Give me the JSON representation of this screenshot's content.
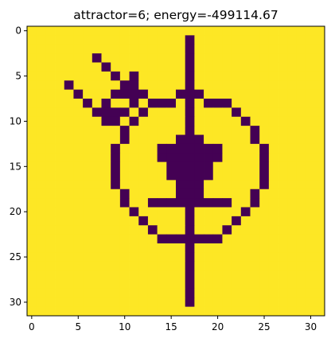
{
  "chart_data": {
    "type": "heatmap",
    "title": "attractor=6; energy=-499114.67",
    "colormap": "viridis",
    "colors": {
      "high": "#fde725",
      "low": "#440154",
      "axes": "#000000",
      "background": "#ffffff"
    },
    "rows": 32,
    "cols": 32,
    "values_legend": {
      "1": "high (yellow)",
      "-1": "low (purple)"
    },
    "x_ticks": [
      0,
      5,
      10,
      15,
      20,
      25,
      30
    ],
    "y_ticks": [
      0,
      5,
      10,
      15,
      20,
      25,
      30
    ],
    "x_tick_labels": [
      "0",
      "5",
      "10",
      "15",
      "20",
      "25",
      "30"
    ],
    "y_tick_labels": [
      "0",
      "5",
      "10",
      "15",
      "20",
      "25",
      "30"
    ],
    "xlim": [
      -0.5,
      31.5
    ],
    "ylim": [
      31.5,
      -0.5
    ],
    "xlabel": "",
    "ylabel": "",
    "low_cells": [
      [
        1,
        17
      ],
      [
        2,
        17
      ],
      [
        3,
        17
      ],
      [
        3,
        7
      ],
      [
        4,
        8
      ],
      [
        4,
        17
      ],
      [
        5,
        9
      ],
      [
        5,
        11
      ],
      [
        5,
        17
      ],
      [
        6,
        4
      ],
      [
        6,
        10
      ],
      [
        6,
        11
      ],
      [
        6,
        17
      ],
      [
        7,
        5
      ],
      [
        7,
        9
      ],
      [
        7,
        10
      ],
      [
        7,
        11
      ],
      [
        7,
        12
      ],
      [
        7,
        16
      ],
      [
        7,
        17
      ],
      [
        7,
        18
      ],
      [
        8,
        6
      ],
      [
        8,
        8
      ],
      [
        8,
        11
      ],
      [
        8,
        13
      ],
      [
        8,
        14
      ],
      [
        8,
        15
      ],
      [
        8,
        17
      ],
      [
        8,
        19
      ],
      [
        8,
        20
      ],
      [
        8,
        21
      ],
      [
        9,
        7
      ],
      [
        9,
        8
      ],
      [
        9,
        9
      ],
      [
        9,
        10
      ],
      [
        9,
        12
      ],
      [
        9,
        17
      ],
      [
        9,
        22
      ],
      [
        10,
        8
      ],
      [
        10,
        9
      ],
      [
        10,
        11
      ],
      [
        10,
        17
      ],
      [
        10,
        23
      ],
      [
        11,
        10
      ],
      [
        11,
        17
      ],
      [
        11,
        24
      ],
      [
        12,
        10
      ],
      [
        12,
        16
      ],
      [
        12,
        17
      ],
      [
        12,
        18
      ],
      [
        12,
        24
      ],
      [
        13,
        9
      ],
      [
        13,
        14
      ],
      [
        13,
        15
      ],
      [
        13,
        16
      ],
      [
        13,
        17
      ],
      [
        13,
        18
      ],
      [
        13,
        19
      ],
      [
        13,
        20
      ],
      [
        13,
        25
      ],
      [
        14,
        9
      ],
      [
        14,
        14
      ],
      [
        14,
        15
      ],
      [
        14,
        16
      ],
      [
        14,
        17
      ],
      [
        14,
        18
      ],
      [
        14,
        19
      ],
      [
        14,
        20
      ],
      [
        14,
        25
      ],
      [
        15,
        9
      ],
      [
        15,
        15
      ],
      [
        15,
        16
      ],
      [
        15,
        17
      ],
      [
        15,
        18
      ],
      [
        15,
        19
      ],
      [
        15,
        25
      ],
      [
        16,
        9
      ],
      [
        16,
        15
      ],
      [
        16,
        16
      ],
      [
        16,
        17
      ],
      [
        16,
        18
      ],
      [
        16,
        19
      ],
      [
        16,
        25
      ],
      [
        17,
        9
      ],
      [
        17,
        16
      ],
      [
        17,
        17
      ],
      [
        17,
        18
      ],
      [
        17,
        25
      ],
      [
        18,
        10
      ],
      [
        18,
        16
      ],
      [
        18,
        17
      ],
      [
        18,
        18
      ],
      [
        18,
        24
      ],
      [
        19,
        10
      ],
      [
        19,
        13
      ],
      [
        19,
        14
      ],
      [
        19,
        15
      ],
      [
        19,
        16
      ],
      [
        19,
        17
      ],
      [
        19,
        18
      ],
      [
        19,
        19
      ],
      [
        19,
        20
      ],
      [
        19,
        21
      ],
      [
        19,
        24
      ],
      [
        20,
        11
      ],
      [
        20,
        17
      ],
      [
        20,
        23
      ],
      [
        21,
        12
      ],
      [
        21,
        17
      ],
      [
        21,
        22
      ],
      [
        22,
        13
      ],
      [
        22,
        17
      ],
      [
        22,
        21
      ],
      [
        23,
        14
      ],
      [
        23,
        15
      ],
      [
        23,
        16
      ],
      [
        23,
        17
      ],
      [
        23,
        18
      ],
      [
        23,
        19
      ],
      [
        23,
        20
      ],
      [
        24,
        17
      ],
      [
        25,
        17
      ],
      [
        26,
        17
      ],
      [
        27,
        17
      ],
      [
        28,
        17
      ],
      [
        29,
        17
      ],
      [
        30,
        17
      ]
    ]
  }
}
